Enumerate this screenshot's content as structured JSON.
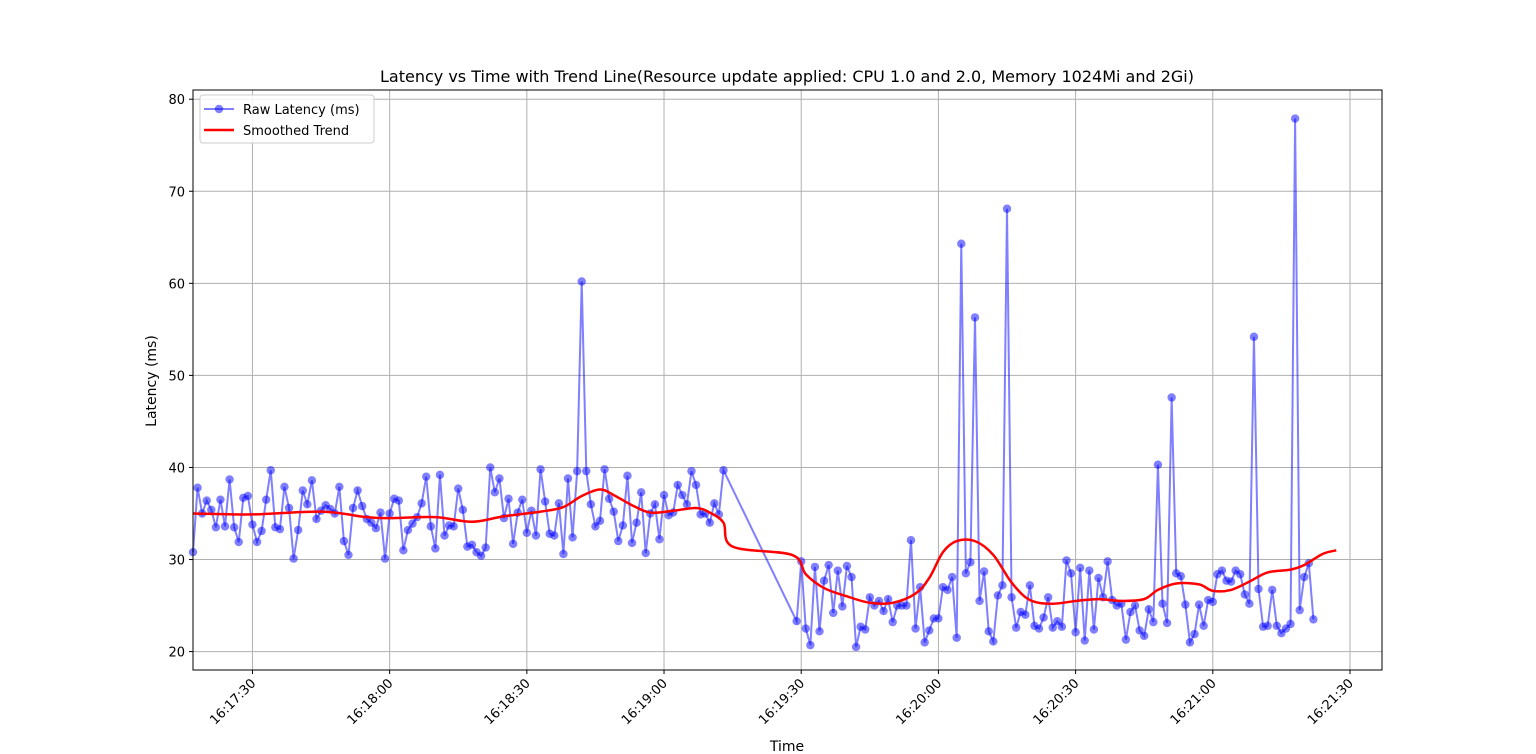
{
  "chart_data": {
    "type": "line",
    "title": "Latency vs Time with Trend Line(Resource update applied: CPU 1.0 and 2.0, Memory 1024Mi and 2Gi)",
    "xlabel": "Time",
    "ylabel": "Latency (ms)",
    "x_start": "16:17:17",
    "x_interval_seconds": 1,
    "xlim": [
      "16:17:17",
      "16:21:37"
    ],
    "ylim": [
      18,
      81
    ],
    "x_ticks": [
      "16:17:30",
      "16:18:00",
      "16:18:30",
      "16:19:00",
      "16:19:30",
      "16:20:00",
      "16:20:30",
      "16:21:00",
      "16:21:30"
    ],
    "y_ticks": [
      20,
      30,
      40,
      50,
      60,
      70,
      80
    ],
    "grid": true,
    "legend_position": "top-left",
    "colors": {
      "raw": "#0000ff",
      "trend": "#ff0000"
    },
    "series": [
      {
        "name": "Raw Latency (ms)",
        "style": "line-marker",
        "segments": [
          {
            "start": "16:17:17",
            "values": [
              30.8,
              37.8,
              35.0,
              36.4,
              35.4,
              33.5,
              36.5,
              33.6,
              38.7,
              33.5,
              31.9,
              36.7,
              36.9,
              33.8,
              31.9,
              33.1,
              36.5,
              39.7,
              33.5,
              33.3,
              37.9,
              35.6,
              30.1,
              33.2,
              37.5,
              36.0,
              38.6,
              34.4,
              35.3,
              35.9,
              35.5,
              35.0,
              37.9,
              32.0,
              30.5,
              35.6,
              37.5,
              35.8,
              34.4,
              34.0,
              33.4,
              35.1,
              30.1,
              35.0,
              36.6,
              36.4,
              31.0,
              33.2,
              33.9,
              34.6,
              36.1,
              39.0,
              33.6,
              31.2,
              39.2,
              32.6,
              33.7,
              33.6,
              37.7,
              35.4,
              31.4,
              31.6,
              30.8,
              30.4,
              31.3,
              40.0,
              37.3,
              38.8,
              34.5,
              36.6,
              31.7,
              35.1,
              36.5,
              32.9,
              35.3,
              32.6,
              39.8,
              36.3,
              32.8,
              32.6,
              36.1,
              30.6,
              38.8,
              32.4,
              39.6,
              60.2,
              39.6,
              36.0,
              33.6,
              34.2,
              39.8,
              36.6,
              35.2,
              32.0,
              33.7,
              39.1,
              31.8,
              34.0,
              37.3,
              30.7,
              35.0,
              36.0,
              32.2,
              37.0,
              34.8,
              35.1,
              38.1,
              37.0,
              36.0,
              39.6,
              38.1,
              34.9,
              35.0,
              34.0,
              36.1,
              34.9,
              39.7
            ]
          },
          {
            "start": "16:19:29",
            "values": [
              23.3,
              29.8,
              22.5,
              20.7,
              29.2,
              22.2,
              27.7,
              29.4,
              24.2,
              28.8,
              24.9,
              29.3,
              28.1,
              20.5,
              22.7,
              22.4,
              25.9,
              25.0,
              25.5,
              24.4,
              25.7,
              23.2,
              25.0,
              25.0,
              25.0,
              32.1,
              22.5,
              27.0,
              21.0,
              22.3,
              23.6,
              23.6,
              27.0,
              26.7,
              28.1,
              21.5,
              64.3,
              28.5,
              29.7,
              56.3,
              25.5,
              28.7,
              22.2,
              21.1,
              26.1,
              27.2,
              68.1,
              25.9,
              22.6,
              24.3,
              24.0,
              27.2,
              22.8,
              22.5,
              23.7,
              25.9,
              22.6,
              23.3,
              22.7,
              29.9,
              28.5,
              22.1,
              29.1,
              21.2,
              28.8,
              22.4,
              28.0,
              25.9,
              29.8,
              25.6,
              25.0,
              25.2,
              21.3,
              24.3,
              25.0,
              22.3,
              21.7,
              24.6,
              23.2,
              40.3,
              25.2,
              23.1,
              47.6,
              28.5,
              28.2,
              25.1,
              21.0,
              21.9,
              25.1,
              22.8,
              25.6,
              25.4,
              28.4,
              28.8,
              27.7,
              27.6,
              28.8,
              28.4,
              26.2,
              25.2,
              54.2,
              26.8,
              22.7,
              22.8,
              26.7,
              22.8,
              22.0,
              22.5,
              23.0,
              77.9,
              24.5,
              28.1,
              29.6,
              23.5
            ]
          }
        ]
      },
      {
        "name": "Smoothed Trend",
        "style": "line",
        "points": [
          [
            "16:17:17",
            35.0
          ],
          [
            "16:17:30",
            34.9
          ],
          [
            "16:17:45",
            35.2
          ],
          [
            "16:17:55",
            34.6
          ],
          [
            "16:18:00",
            34.5
          ],
          [
            "16:18:10",
            34.6
          ],
          [
            "16:18:18",
            34.1
          ],
          [
            "16:18:25",
            34.7
          ],
          [
            "16:18:33",
            35.2
          ],
          [
            "16:18:38",
            35.7
          ],
          [
            "16:18:42",
            36.9
          ],
          [
            "16:18:46",
            37.6
          ],
          [
            "16:18:49",
            37.0
          ],
          [
            "16:18:53",
            35.9
          ],
          [
            "16:18:57",
            35.1
          ],
          [
            "16:19:02",
            35.3
          ],
          [
            "16:19:07",
            35.6
          ],
          [
            "16:19:10",
            35.1
          ],
          [
            "16:19:13",
            34.0
          ],
          [
            "16:19:15",
            31.4
          ],
          [
            "16:19:28",
            30.5
          ],
          [
            "16:19:31",
            28.4
          ],
          [
            "16:19:35",
            26.9
          ],
          [
            "16:19:40",
            26.0
          ],
          [
            "16:19:45",
            25.3
          ],
          [
            "16:19:50",
            25.3
          ],
          [
            "16:19:55",
            26.3
          ],
          [
            "16:19:58",
            28.0
          ],
          [
            "16:20:01",
            30.8
          ],
          [
            "16:20:04",
            32.0
          ],
          [
            "16:20:08",
            32.0
          ],
          [
            "16:20:12",
            30.5
          ],
          [
            "16:20:16",
            27.5
          ],
          [
            "16:20:20",
            25.6
          ],
          [
            "16:20:25",
            25.2
          ],
          [
            "16:20:30",
            25.5
          ],
          [
            "16:20:35",
            25.7
          ],
          [
            "16:20:40",
            25.5
          ],
          [
            "16:20:45",
            25.7
          ],
          [
            "16:20:48",
            26.7
          ],
          [
            "16:20:52",
            27.4
          ],
          [
            "16:20:57",
            27.3
          ],
          [
            "16:21:00",
            26.6
          ],
          [
            "16:21:04",
            26.7
          ],
          [
            "16:21:08",
            27.6
          ],
          [
            "16:21:12",
            28.6
          ],
          [
            "16:21:17",
            28.9
          ],
          [
            "16:21:20",
            29.4
          ],
          [
            "16:21:24",
            30.6
          ],
          [
            "16:21:27",
            31.0
          ]
        ]
      }
    ]
  }
}
